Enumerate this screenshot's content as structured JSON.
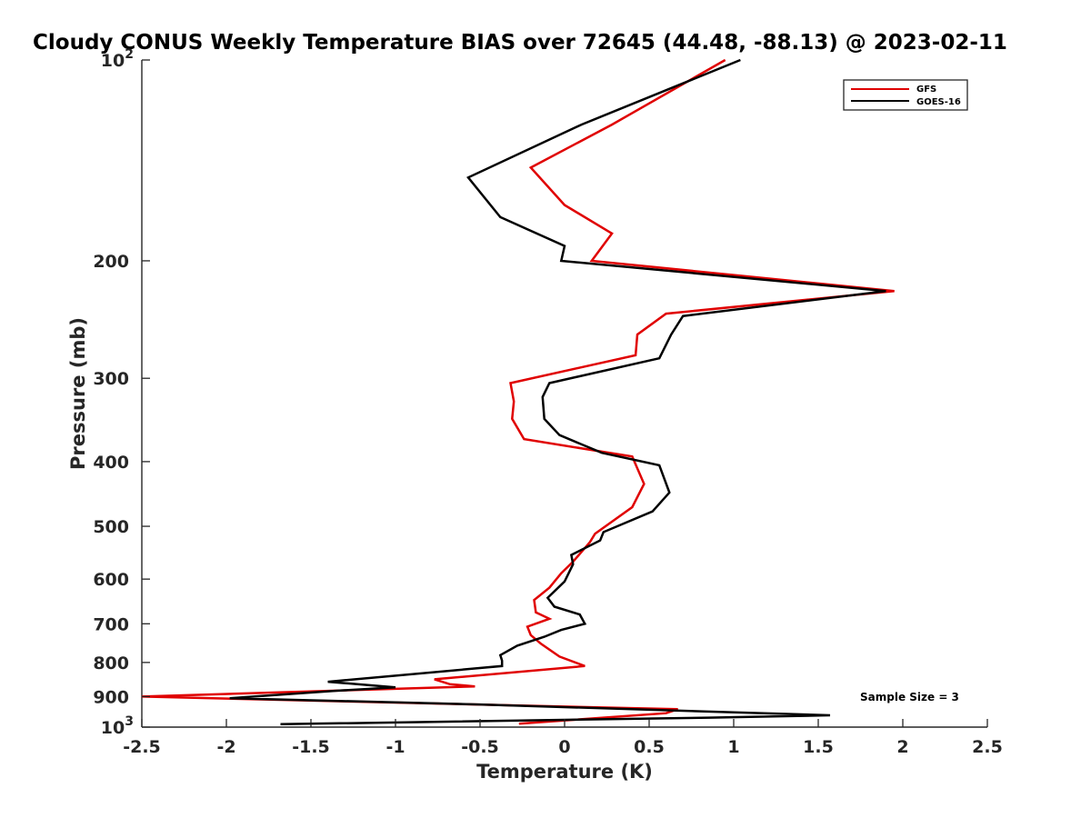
{
  "chart_data": {
    "type": "line",
    "title": "Cloudy CONUS Weekly Temperature BIAS over 72645 (44.48, -88.13) @ 2023-02-11",
    "xlabel": "Temperature (K)",
    "ylabel": "Pressure (mb)",
    "xlim": [
      -2.5,
      2.5
    ],
    "ylim": [
      100,
      1000
    ],
    "y_scale": "log",
    "y_reversed": true,
    "grid": false,
    "legend_position": "top-right",
    "x_ticks": [
      {
        "value": -2.5,
        "label": "-2.5"
      },
      {
        "value": -2,
        "label": "-2"
      },
      {
        "value": -1.5,
        "label": "-1.5"
      },
      {
        "value": -1,
        "label": "-1"
      },
      {
        "value": -0.5,
        "label": "-0.5"
      },
      {
        "value": 0,
        "label": "0"
      },
      {
        "value": 0.5,
        "label": "0.5"
      },
      {
        "value": 1,
        "label": "1"
      },
      {
        "value": 1.5,
        "label": "1.5"
      },
      {
        "value": 2,
        "label": "2"
      },
      {
        "value": 2.5,
        "label": "2.5"
      }
    ],
    "y_ticks": [
      {
        "value": 100,
        "base": "10",
        "exp": "2"
      },
      {
        "value": 200,
        "base": "200",
        "exp": ""
      },
      {
        "value": 300,
        "base": "300",
        "exp": ""
      },
      {
        "value": 400,
        "base": "400",
        "exp": ""
      },
      {
        "value": 500,
        "base": "500",
        "exp": ""
      },
      {
        "value": 600,
        "base": "600",
        "exp": ""
      },
      {
        "value": 700,
        "base": "700",
        "exp": ""
      },
      {
        "value": 800,
        "base": "800",
        "exp": ""
      },
      {
        "value": 900,
        "base": "900",
        "exp": ""
      },
      {
        "value": 1000,
        "base": "10",
        "exp": "3"
      }
    ],
    "annotation": "Sample Size = 3",
    "series": [
      {
        "name": "GFS",
        "color": "#e00000",
        "points": [
          [
            0.95,
            100
          ],
          [
            0.28,
            125
          ],
          [
            -0.2,
            145
          ],
          [
            0.0,
            165
          ],
          [
            0.28,
            182
          ],
          [
            0.16,
            200
          ],
          [
            1.95,
            222
          ],
          [
            0.6,
            240
          ],
          [
            0.43,
            258
          ],
          [
            0.42,
            277
          ],
          [
            -0.32,
            305
          ],
          [
            -0.3,
            325
          ],
          [
            -0.31,
            345
          ],
          [
            -0.24,
            370
          ],
          [
            0.4,
            393
          ],
          [
            0.47,
            432
          ],
          [
            0.4,
            468
          ],
          [
            0.18,
            513
          ],
          [
            0.15,
            528
          ],
          [
            0.05,
            565
          ],
          [
            -0.02,
            588
          ],
          [
            -0.09,
            618
          ],
          [
            -0.18,
            645
          ],
          [
            -0.17,
            673
          ],
          [
            -0.09,
            688
          ],
          [
            -0.22,
            707
          ],
          [
            -0.2,
            728
          ],
          [
            -0.14,
            750
          ],
          [
            -0.03,
            784
          ],
          [
            0.12,
            810
          ],
          [
            -0.77,
            848
          ],
          [
            -0.68,
            862
          ],
          [
            -0.53,
            869
          ],
          [
            -2.5,
            900
          ],
          [
            0.67,
            940
          ],
          [
            0.6,
            953
          ],
          [
            -0.27,
            988
          ]
        ]
      },
      {
        "name": "GOES-16",
        "color": "#000000",
        "points": [
          [
            1.04,
            100
          ],
          [
            0.1,
            125
          ],
          [
            -0.57,
            150
          ],
          [
            -0.38,
            172
          ],
          [
            0.0,
            190
          ],
          [
            -0.02,
            200
          ],
          [
            1.9,
            222
          ],
          [
            0.7,
            242
          ],
          [
            0.63,
            258
          ],
          [
            0.56,
            280
          ],
          [
            -0.09,
            305
          ],
          [
            -0.13,
            320
          ],
          [
            -0.12,
            345
          ],
          [
            -0.03,
            365
          ],
          [
            0.22,
            388
          ],
          [
            0.56,
            405
          ],
          [
            0.62,
            445
          ],
          [
            0.52,
            475
          ],
          [
            0.23,
            510
          ],
          [
            0.21,
            525
          ],
          [
            0.04,
            552
          ],
          [
            0.05,
            570
          ],
          [
            0.0,
            605
          ],
          [
            -0.1,
            640
          ],
          [
            -0.06,
            660
          ],
          [
            0.09,
            678
          ],
          [
            0.12,
            700
          ],
          [
            -0.02,
            715
          ],
          [
            -0.12,
            732
          ],
          [
            -0.28,
            755
          ],
          [
            -0.38,
            780
          ],
          [
            -0.37,
            795
          ],
          [
            -0.37,
            810
          ],
          [
            -1.4,
            855
          ],
          [
            -1.0,
            872
          ],
          [
            -1.35,
            882
          ],
          [
            -1.98,
            905
          ],
          [
            -0.5,
            925
          ],
          [
            1.57,
            960
          ],
          [
            0.85,
            968
          ],
          [
            -1.68,
            990
          ]
        ]
      }
    ]
  }
}
